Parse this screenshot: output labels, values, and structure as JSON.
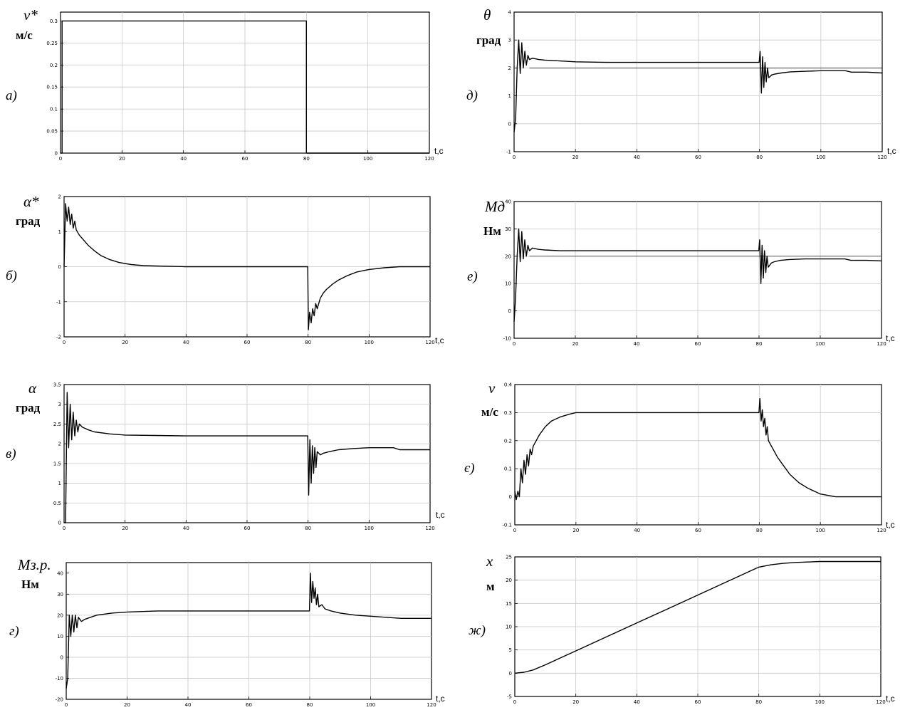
{
  "chart_data": [
    {
      "type": "line",
      "label": "а)",
      "symbol": "v*",
      "unit": "м/с",
      "xlabel": "t,c",
      "xlim": [
        0,
        120
      ],
      "ylim": [
        0,
        0.32
      ],
      "xticks": [
        0,
        20,
        40,
        60,
        80,
        100,
        120
      ],
      "xticklabels": [
        "0",
        "20",
        "40",
        "60",
        "80",
        "100",
        "120"
      ],
      "yticks": [
        0,
        0.05,
        0.1,
        0.15,
        0.2,
        0.25,
        0.3
      ],
      "yticklabels": [
        "0",
        "0.05",
        "0.1",
        "0.15",
        "0.2",
        "0.25",
        "0.3"
      ],
      "grid": true,
      "series": [
        {
          "x": [
            0,
            0.5,
            0.5,
            80,
            80,
            120
          ],
          "y": [
            0,
            0,
            0.3,
            0.3,
            0,
            0
          ]
        }
      ]
    },
    {
      "type": "line",
      "label": "б)",
      "symbol": "α*",
      "unit": "град",
      "xlabel": "t,c",
      "xlim": [
        0,
        120
      ],
      "ylim": [
        -2,
        2
      ],
      "xticks": [
        0,
        20,
        40,
        60,
        80,
        100,
        120
      ],
      "xticklabels": [
        "0",
        "20",
        "40",
        "60",
        "80",
        "100",
        "120"
      ],
      "yticks": [
        -2,
        -1,
        0,
        1,
        2
      ],
      "yticklabels": [
        "-2",
        "-1",
        "0",
        "1",
        "2"
      ],
      "grid": true,
      "series": [
        {
          "x": [
            0,
            0.5,
            1,
            1.5,
            2,
            2.5,
            3,
            3.5,
            4,
            5,
            6,
            8,
            10,
            12,
            15,
            18,
            22,
            26,
            30,
            40,
            50,
            60,
            70,
            79.9,
            80.1,
            80.5,
            81,
            81.5,
            82,
            82.5,
            83,
            84,
            85,
            86,
            88,
            90,
            93,
            96,
            100,
            105,
            110,
            115,
            120
          ],
          "y": [
            0,
            1.8,
            1.3,
            1.7,
            1.2,
            1.5,
            1.1,
            1.3,
            1.05,
            0.9,
            0.8,
            0.6,
            0.45,
            0.32,
            0.2,
            0.12,
            0.06,
            0.03,
            0.02,
            0,
            0,
            0,
            0,
            0,
            -1.8,
            -1.3,
            -1.6,
            -1.2,
            -1.4,
            -1.05,
            -1.2,
            -0.9,
            -0.75,
            -0.65,
            -0.5,
            -0.38,
            -0.25,
            -0.15,
            -0.08,
            -0.03,
            0,
            0,
            0
          ]
        }
      ]
    },
    {
      "type": "line",
      "label": "в)",
      "symbol": "α",
      "unit": "град",
      "xlabel": "t,c",
      "xlim": [
        0,
        120
      ],
      "ylim": [
        0,
        3.5
      ],
      "xticks": [
        0,
        20,
        40,
        60,
        80,
        100,
        120
      ],
      "xticklabels": [
        "0",
        "20",
        "40",
        "60",
        "80",
        "100",
        "120"
      ],
      "yticks": [
        0,
        0.5,
        1,
        1.5,
        2,
        2.5,
        3,
        3.5
      ],
      "yticklabels": [
        "0",
        "0.5",
        "1",
        "1.5",
        "2",
        "2.5",
        "3",
        "3.5"
      ],
      "grid": true,
      "series": [
        {
          "x": [
            0,
            0.5,
            1,
            1.5,
            2,
            2.5,
            3,
            3.5,
            4,
            4.5,
            5,
            6,
            8,
            10,
            15,
            20,
            30,
            40,
            60,
            79.9,
            80.2,
            80.6,
            81,
            81.4,
            81.8,
            82.2,
            82.6,
            83,
            84,
            85,
            87,
            90,
            95,
            100,
            105,
            108,
            110,
            115,
            120
          ],
          "y": [
            0,
            0,
            3.3,
            1.9,
            3.0,
            2.1,
            2.8,
            2.2,
            2.6,
            2.3,
            2.5,
            2.42,
            2.35,
            2.3,
            2.25,
            2.22,
            2.21,
            2.2,
            2.2,
            2.2,
            0.7,
            2.1,
            1.0,
            1.95,
            1.25,
            1.9,
            1.4,
            1.8,
            1.72,
            1.76,
            1.8,
            1.85,
            1.88,
            1.9,
            1.9,
            1.9,
            1.85,
            1.85,
            1.85
          ]
        }
      ]
    },
    {
      "type": "line",
      "label": "г)",
      "symbol": "Mз.р.",
      "unit": "Нм",
      "xlabel": "t,c",
      "xlim": [
        0,
        120
      ],
      "ylim": [
        -20,
        45
      ],
      "xticks": [
        0,
        20,
        40,
        60,
        80,
        100,
        120
      ],
      "xticklabels": [
        "0",
        "20",
        "40",
        "60",
        "80",
        "100",
        "120"
      ],
      "yticks": [
        -20,
        -10,
        0,
        10,
        20,
        30,
        40
      ],
      "yticklabels": [
        "-20",
        "-10",
        "0",
        "10",
        "20",
        "30",
        "40"
      ],
      "grid": true,
      "series": [
        {
          "x": [
            0,
            0.5,
            1,
            1.5,
            2,
            2.5,
            3,
            3.5,
            4,
            5,
            6,
            8,
            10,
            15,
            20,
            30,
            40,
            60,
            79.9,
            80.2,
            80.6,
            81,
            81.4,
            81.8,
            82.2,
            82.6,
            83,
            84,
            85,
            87,
            90,
            95,
            100,
            105,
            110,
            115,
            120
          ],
          "y": [
            -15,
            -10,
            20,
            10,
            20,
            12,
            20,
            14,
            19,
            17,
            18,
            19,
            20,
            21,
            21.5,
            22,
            22,
            22,
            22,
            40,
            26,
            36,
            28,
            33,
            25,
            30,
            24,
            25,
            23,
            22,
            21,
            20,
            19.5,
            19,
            18.5,
            18.5,
            18.5
          ]
        }
      ]
    },
    {
      "type": "line",
      "label": "д)",
      "symbol": "θ",
      "unit": "град",
      "xlabel": "t,c",
      "xlim": [
        0,
        120
      ],
      "ylim": [
        -1,
        4
      ],
      "xticks": [
        0,
        20,
        40,
        60,
        80,
        100,
        120
      ],
      "xticklabels": [
        "0",
        "20",
        "40",
        "60",
        "80",
        "100",
        "120"
      ],
      "yticks": [
        -1,
        0,
        1,
        2,
        3,
        4
      ],
      "yticklabels": [
        "-1",
        "0",
        "1",
        "2",
        "3",
        "4"
      ],
      "grid": true,
      "reference_line": 2,
      "series": [
        {
          "x": [
            0,
            0.5,
            1,
            1.5,
            2,
            2.5,
            3,
            3.5,
            4,
            4.5,
            5,
            6,
            8,
            10,
            15,
            20,
            30,
            40,
            60,
            79.9,
            80.2,
            80.6,
            81,
            81.4,
            81.8,
            82.2,
            82.6,
            83,
            84,
            85,
            87,
            90,
            95,
            100,
            105,
            108,
            110,
            115,
            120
          ],
          "y": [
            -0.3,
            0.2,
            2.0,
            3.0,
            1.8,
            2.9,
            2.0,
            2.6,
            2.1,
            2.45,
            2.3,
            2.35,
            2.3,
            2.28,
            2.25,
            2.22,
            2.2,
            2.2,
            2.2,
            2.2,
            2.6,
            1.1,
            2.4,
            1.3,
            2.2,
            1.5,
            2.0,
            1.65,
            1.75,
            1.78,
            1.82,
            1.86,
            1.88,
            1.9,
            1.9,
            1.9,
            1.85,
            1.85,
            1.82
          ]
        }
      ]
    },
    {
      "type": "line",
      "label": "е)",
      "symbol": "Mд",
      "unit": "Нм",
      "xlabel": "t,c",
      "xlim": [
        0,
        120
      ],
      "ylim": [
        -10,
        40
      ],
      "xticks": [
        0,
        20,
        40,
        60,
        80,
        100,
        120
      ],
      "xticklabels": [
        "0",
        "20",
        "40",
        "60",
        "80",
        "100",
        "120"
      ],
      "yticks": [
        -10,
        0,
        10,
        20,
        30,
        40
      ],
      "yticklabels": [
        "-10",
        "0",
        "10",
        "20",
        "30",
        "40"
      ],
      "grid": true,
      "reference_line": 20,
      "series": [
        {
          "x": [
            0,
            0.5,
            1,
            1.5,
            2,
            2.5,
            3,
            3.5,
            4,
            4.5,
            5,
            6,
            8,
            10,
            15,
            20,
            30,
            40,
            60,
            79.9,
            80.2,
            80.6,
            81,
            81.4,
            81.8,
            82.2,
            82.6,
            83,
            84,
            85,
            87,
            90,
            95,
            100,
            105,
            108,
            110,
            115,
            120
          ],
          "y": [
            -4,
            5,
            20,
            30,
            18,
            29,
            19,
            26,
            20,
            24,
            22,
            23,
            22.5,
            22.3,
            22,
            22,
            22,
            22,
            22,
            22,
            26,
            10,
            24,
            12,
            22,
            14,
            20,
            16,
            17.5,
            18,
            18.5,
            18.8,
            19,
            19,
            19,
            19,
            18.5,
            18.5,
            18.3
          ]
        }
      ]
    },
    {
      "type": "line",
      "label": "є)",
      "symbol": "v",
      "unit": "м/с",
      "xlabel": "t,c",
      "xlim": [
        0,
        120
      ],
      "ylim": [
        -0.1,
        0.4
      ],
      "xticks": [
        0,
        20,
        40,
        60,
        80,
        100,
        120
      ],
      "xticklabels": [
        "0",
        "20",
        "40",
        "60",
        "80",
        "100",
        "120"
      ],
      "yticks": [
        -0.1,
        0,
        0.1,
        0.2,
        0.3,
        0.4
      ],
      "yticklabels": [
        "-0.1",
        "0",
        "0.1",
        "0.2",
        "0.3",
        "0.4"
      ],
      "grid": true,
      "series": [
        {
          "x": [
            0,
            0.5,
            1,
            1.5,
            2,
            2.5,
            3,
            3.5,
            4,
            4.5,
            5,
            5.5,
            6,
            8,
            10,
            12,
            15,
            18,
            20,
            25,
            30,
            40,
            60,
            79.9,
            80.2,
            80.6,
            81,
            81.4,
            81.8,
            82.2,
            82.6,
            83,
            84,
            86,
            88,
            90,
            93,
            96,
            100,
            105,
            110,
            115,
            120
          ],
          "y": [
            0.02,
            -0.01,
            0.02,
            0,
            0.1,
            0.05,
            0.13,
            0.08,
            0.15,
            0.11,
            0.17,
            0.15,
            0.18,
            0.22,
            0.25,
            0.27,
            0.285,
            0.295,
            0.3,
            0.3,
            0.3,
            0.3,
            0.3,
            0.3,
            0.35,
            0.27,
            0.31,
            0.25,
            0.28,
            0.22,
            0.25,
            0.2,
            0.18,
            0.14,
            0.11,
            0.08,
            0.05,
            0.03,
            0.01,
            0,
            0,
            0,
            0
          ]
        }
      ]
    },
    {
      "type": "line",
      "label": "ж)",
      "symbol": "x",
      "unit": "м",
      "xlabel": "t,c",
      "xlim": [
        0,
        120
      ],
      "ylim": [
        -5,
        25
      ],
      "xticks": [
        0,
        20,
        40,
        60,
        80,
        100,
        120
      ],
      "xticklabels": [
        "0",
        "20",
        "40",
        "60",
        "80",
        "100",
        "120"
      ],
      "yticks": [
        -5,
        0,
        5,
        10,
        15,
        20,
        25
      ],
      "yticklabels": [
        "-5",
        "0",
        "5",
        "10",
        "15",
        "20",
        "25"
      ],
      "grid": true,
      "series": [
        {
          "x": [
            0,
            3,
            6,
            10,
            15,
            20,
            30,
            40,
            50,
            60,
            70,
            78,
            80,
            84,
            88,
            92,
            96,
            100,
            105,
            110,
            120
          ],
          "y": [
            0,
            0.2,
            0.7,
            1.8,
            3.3,
            4.8,
            7.8,
            10.8,
            13.8,
            16.8,
            19.8,
            22.2,
            22.8,
            23.3,
            23.6,
            23.8,
            23.9,
            24,
            24,
            24,
            24
          ]
        }
      ]
    }
  ]
}
